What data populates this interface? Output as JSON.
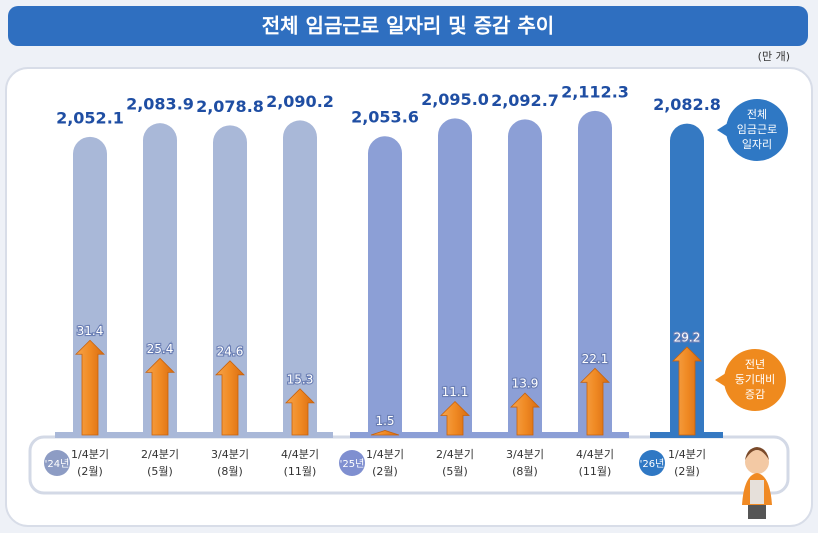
{
  "chart_data": {
    "type": "bar",
    "title": "전체 임금근로 일자리 및 증감 추이",
    "unit": "(만 개)",
    "ylim": [
      1362,
      2200
    ],
    "y2lim": [
      0,
      120
    ],
    "change_color": "#f08a24",
    "legend": [
      {
        "lines": [
          "전체",
          "임금근로",
          "일자리"
        ],
        "color": "#2f78c4"
      },
      {
        "lines": [
          "전년",
          "동기대비",
          "증감"
        ],
        "color": "#ef8a1e"
      }
    ],
    "groups": [
      {
        "label": "'24년",
        "color": "#a9b8d8",
        "badge": "#8d9cc4",
        "categories": [
          "1/4분기",
          "2/4분기",
          "3/4분기",
          "4/4분기"
        ],
        "months": [
          "(2월)",
          "(5월)",
          "(8월)",
          "(11월)"
        ],
        "values": [
          2052.1,
          2083.9,
          2078.8,
          2090.2
        ],
        "value_labels": [
          "2,052.1",
          "2,083.9",
          "2,078.8",
          "2,090.2"
        ],
        "changes": [
          31.4,
          25.4,
          24.6,
          15.3
        ]
      },
      {
        "label": "'25년",
        "color": "#8c9fd6",
        "badge": "#7f8fd0",
        "categories": [
          "1/4분기",
          "2/4분기",
          "3/4분기",
          "4/4분기"
        ],
        "months": [
          "(2월)",
          "(5월)",
          "(8월)",
          "(11월)"
        ],
        "values": [
          2053.6,
          2095.0,
          2092.7,
          2112.3
        ],
        "value_labels": [
          "2,053.6",
          "2,095.0",
          "2,092.7",
          "2,112.3"
        ],
        "changes": [
          1.5,
          11.1,
          13.9,
          22.1
        ]
      },
      {
        "label": "'26년",
        "color": "#3579c2",
        "badge": "#2f78c4",
        "categories": [
          "1/4분기"
        ],
        "months": [
          "(2월)"
        ],
        "values": [
          2082.8
        ],
        "value_labels": [
          "2,082.8"
        ],
        "changes": [
          29.2
        ]
      }
    ]
  }
}
